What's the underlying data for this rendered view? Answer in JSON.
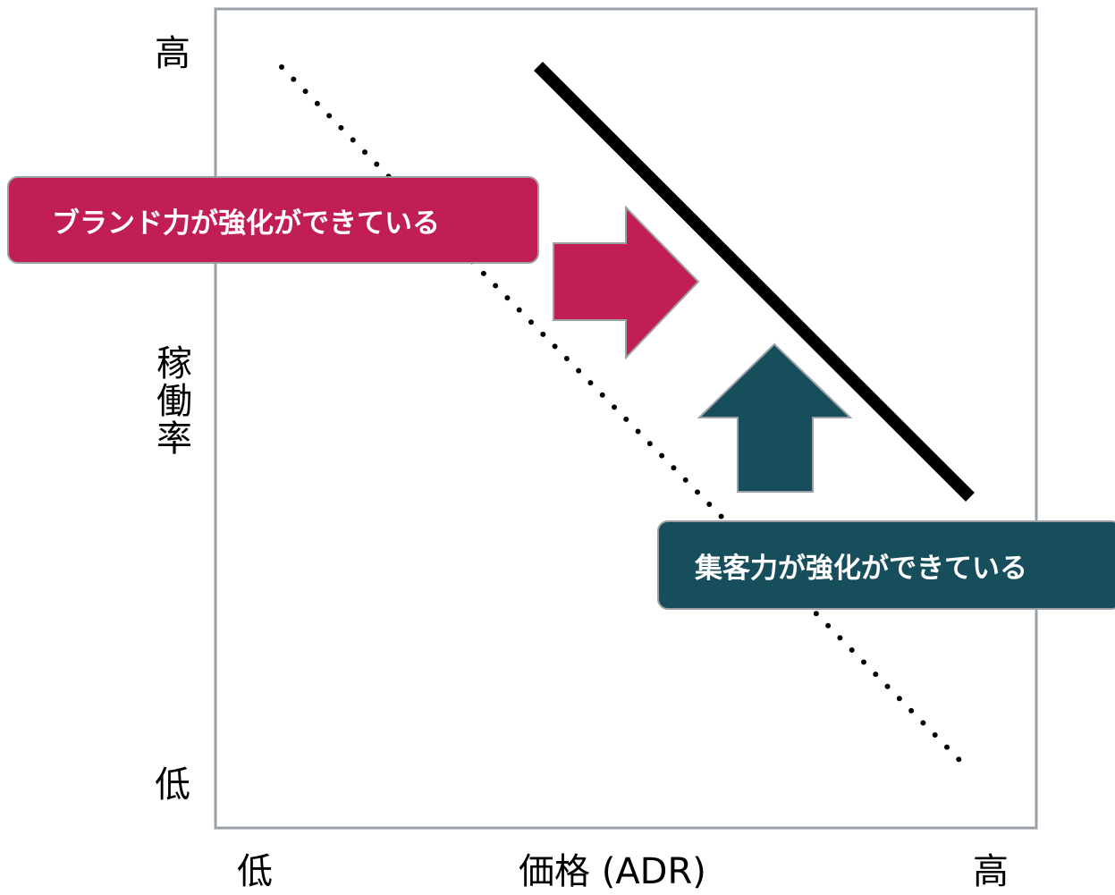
{
  "y_axis": {
    "title": "稼働率",
    "high_label": "高",
    "low_label": "低"
  },
  "x_axis": {
    "title": "価格 (ADR)",
    "low_label": "低",
    "high_label": "高"
  },
  "callouts": {
    "brand_label": "ブランド力が強化ができている",
    "brand_color": "#c21e56",
    "demand_label": "集客力が強化ができている",
    "demand_color": "#174e5c"
  },
  "arrows": {
    "right_arrow_icon": "arrow-right-icon",
    "up_arrow_icon": "arrow-up-icon"
  }
}
